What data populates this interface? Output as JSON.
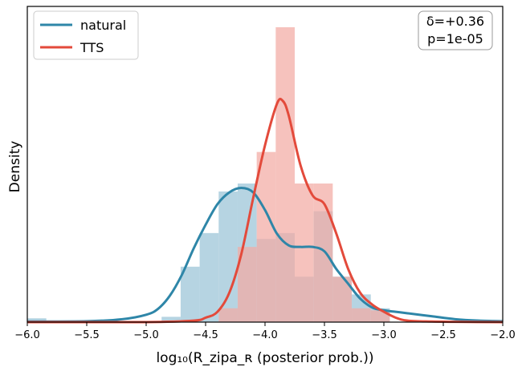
{
  "chart_data": {
    "type": "histogram+kde",
    "xlabel": "log₁₀(R_zipa_ʀ (posterior prob.))",
    "ylabel": "Density",
    "xlim": [
      -6.0,
      -2.0
    ],
    "ylim": [
      0,
      1.0
    ],
    "y_ticks_shown": false,
    "xticks": [
      -6.0,
      -5.5,
      -5.0,
      -4.5,
      -4.0,
      -3.5,
      -3.0,
      -2.5,
      -2.0
    ],
    "xtick_labels": [
      "−6.0",
      "−5.5",
      "−5.0",
      "−4.5",
      "−4.0",
      "−3.5",
      "−3.0",
      "−2.5",
      "−2.0"
    ],
    "legend_position": "top-left",
    "annotation_position": "top-right",
    "annotation": [
      "δ=+0.36",
      "p=1e-05"
    ],
    "colors": {
      "natural_line": "#2e86a8",
      "natural_fill": "#a9cddd",
      "tts_line": "#e34a3b",
      "tts_fill": "#f2aba3"
    },
    "series": [
      {
        "name": "natural",
        "histogram": [
          {
            "x0": -6.0,
            "x1": -5.84,
            "density": 0.013
          },
          {
            "x0": -4.87,
            "x1": -4.71,
            "density": 0.018
          },
          {
            "x0": -4.71,
            "x1": -4.55,
            "density": 0.188
          },
          {
            "x0": -4.55,
            "x1": -4.39,
            "density": 0.302
          },
          {
            "x0": -4.39,
            "x1": -4.23,
            "density": 0.443
          },
          {
            "x0": -4.23,
            "x1": -4.07,
            "density": 0.47
          },
          {
            "x0": -4.07,
            "x1": -3.91,
            "density": 0.282
          },
          {
            "x0": -3.91,
            "x1": -3.75,
            "density": 0.302
          },
          {
            "x0": -3.75,
            "x1": -3.59,
            "density": 0.154
          },
          {
            "x0": -3.59,
            "x1": -3.43,
            "density": 0.376
          },
          {
            "x0": -3.43,
            "x1": -3.27,
            "density": 0.154
          },
          {
            "x0": -3.27,
            "x1": -3.11,
            "density": 0.094
          },
          {
            "x0": -3.11,
            "x1": -2.95,
            "density": 0.047
          }
        ],
        "kde": {
          "x": [
            -6.0,
            -5.5,
            -5.2,
            -5.0,
            -4.9,
            -4.8,
            -4.7,
            -4.6,
            -4.5,
            -4.4,
            -4.3,
            -4.2,
            -4.1,
            -4.0,
            -3.9,
            -3.8,
            -3.7,
            -3.6,
            -3.5,
            -3.4,
            -3.3,
            -3.2,
            -3.1,
            -3.0,
            -2.9,
            -2.8,
            -2.6,
            -2.4,
            -2.2,
            -2.0
          ],
          "y": [
            0.002,
            0.003,
            0.01,
            0.025,
            0.045,
            0.09,
            0.16,
            0.25,
            0.33,
            0.4,
            0.44,
            0.455,
            0.44,
            0.38,
            0.3,
            0.26,
            0.255,
            0.255,
            0.24,
            0.18,
            0.13,
            0.08,
            0.05,
            0.04,
            0.035,
            0.03,
            0.02,
            0.01,
            0.005,
            0.003
          ]
        }
      },
      {
        "name": "TTS",
        "histogram": [
          {
            "x0": -4.39,
            "x1": -4.23,
            "density": 0.047
          },
          {
            "x0": -4.23,
            "x1": -4.07,
            "density": 0.255
          },
          {
            "x0": -4.07,
            "x1": -3.91,
            "density": 0.577
          },
          {
            "x0": -3.91,
            "x1": -3.75,
            "density": 1.0
          },
          {
            "x0": -3.75,
            "x1": -3.59,
            "density": 0.47
          },
          {
            "x0": -3.59,
            "x1": -3.43,
            "density": 0.47
          },
          {
            "x0": -3.43,
            "x1": -3.27,
            "density": 0.154
          },
          {
            "x0": -3.27,
            "x1": -3.11,
            "density": 0.047
          },
          {
            "x0": -3.11,
            "x1": -2.95,
            "density": 0.04
          }
        ],
        "kde": {
          "x": [
            -6.0,
            -5.0,
            -4.6,
            -4.5,
            -4.4,
            -4.3,
            -4.2,
            -4.1,
            -4.0,
            -3.9,
            -3.85,
            -3.8,
            -3.7,
            -3.6,
            -3.5,
            -3.4,
            -3.3,
            -3.2,
            -3.1,
            -3.0,
            -2.9,
            -2.8,
            -2.6,
            -2.4,
            -2.0
          ],
          "y": [
            0.0,
            0.0,
            0.005,
            0.015,
            0.035,
            0.1,
            0.23,
            0.42,
            0.6,
            0.74,
            0.75,
            0.7,
            0.53,
            0.43,
            0.4,
            0.3,
            0.18,
            0.1,
            0.06,
            0.035,
            0.015,
            0.005,
            0.002,
            0.001,
            0.0
          ]
        }
      }
    ]
  }
}
